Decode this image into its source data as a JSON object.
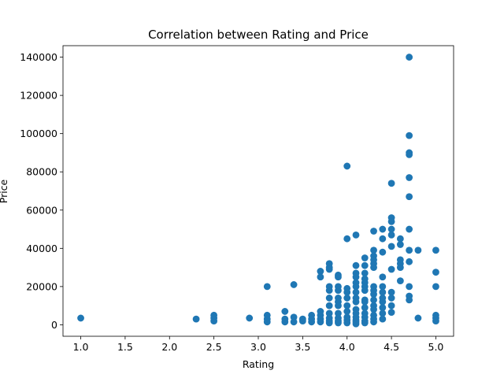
{
  "chart_data": {
    "type": "scatter",
    "title": "Correlation between Rating and Price",
    "xlabel": "Rating",
    "ylabel": "Price",
    "xlim": [
      0.8,
      5.2
    ],
    "ylim": [
      -6000,
      146000
    ],
    "xticks": [
      1.0,
      1.5,
      2.0,
      2.5,
      3.0,
      3.5,
      4.0,
      4.5,
      5.0
    ],
    "xtick_labels": [
      "1.0",
      "1.5",
      "2.0",
      "2.5",
      "3.0",
      "3.5",
      "4.0",
      "4.5",
      "5.0"
    ],
    "yticks": [
      0,
      20000,
      40000,
      60000,
      80000,
      100000,
      120000,
      140000
    ],
    "ytick_labels": [
      "0",
      "20000",
      "40000",
      "60000",
      "80000",
      "100000",
      "120000",
      "140000"
    ],
    "grid": false,
    "marker_color": "#1f77b4",
    "series": [
      {
        "points": [
          [
            1.0,
            3500
          ],
          [
            2.3,
            3000
          ],
          [
            2.5,
            2000
          ],
          [
            2.5,
            3500
          ],
          [
            2.5,
            5000
          ],
          [
            2.9,
            3500
          ],
          [
            3.1,
            20000
          ],
          [
            3.1,
            5000
          ],
          [
            3.1,
            3000
          ],
          [
            3.1,
            1500
          ],
          [
            3.3,
            7000
          ],
          [
            3.3,
            3000
          ],
          [
            3.3,
            1500
          ],
          [
            3.4,
            21000
          ],
          [
            3.4,
            4000
          ],
          [
            3.4,
            1500
          ],
          [
            3.5,
            3000
          ],
          [
            3.5,
            2000
          ],
          [
            3.6,
            5000
          ],
          [
            3.6,
            3000
          ],
          [
            3.6,
            1500
          ],
          [
            3.7,
            28000
          ],
          [
            3.7,
            25000
          ],
          [
            3.7,
            7000
          ],
          [
            3.7,
            5000
          ],
          [
            3.7,
            3000
          ],
          [
            3.7,
            1500
          ],
          [
            3.8,
            32000
          ],
          [
            3.8,
            30000
          ],
          [
            3.8,
            29000
          ],
          [
            3.8,
            20000
          ],
          [
            3.8,
            18000
          ],
          [
            3.8,
            14000
          ],
          [
            3.8,
            10000
          ],
          [
            3.8,
            6000
          ],
          [
            3.8,
            3500
          ],
          [
            3.8,
            2000
          ],
          [
            3.8,
            1000
          ],
          [
            3.9,
            26000
          ],
          [
            3.9,
            25000
          ],
          [
            3.9,
            20000
          ],
          [
            3.9,
            18000
          ],
          [
            3.9,
            14000
          ],
          [
            3.9,
            12000
          ],
          [
            3.9,
            10000
          ],
          [
            3.9,
            6000
          ],
          [
            3.9,
            3500
          ],
          [
            3.9,
            2000
          ],
          [
            3.9,
            1000
          ],
          [
            4.0,
            83000
          ],
          [
            4.0,
            45000
          ],
          [
            4.0,
            19000
          ],
          [
            4.0,
            17000
          ],
          [
            4.0,
            14000
          ],
          [
            4.0,
            10000
          ],
          [
            4.0,
            7000
          ],
          [
            4.0,
            4000
          ],
          [
            4.0,
            2500
          ],
          [
            4.0,
            1000
          ],
          [
            4.1,
            47000
          ],
          [
            4.1,
            31000
          ],
          [
            4.1,
            27000
          ],
          [
            4.1,
            25000
          ],
          [
            4.1,
            22000
          ],
          [
            4.1,
            20000
          ],
          [
            4.1,
            17000
          ],
          [
            4.1,
            14000
          ],
          [
            4.1,
            12000
          ],
          [
            4.1,
            8000
          ],
          [
            4.1,
            6000
          ],
          [
            4.1,
            4000
          ],
          [
            4.1,
            2500
          ],
          [
            4.1,
            1500
          ],
          [
            4.1,
            500
          ],
          [
            4.2,
            35000
          ],
          [
            4.2,
            31000
          ],
          [
            4.2,
            27000
          ],
          [
            4.2,
            24000
          ],
          [
            4.2,
            22000
          ],
          [
            4.2,
            20000
          ],
          [
            4.2,
            18000
          ],
          [
            4.2,
            13000
          ],
          [
            4.2,
            12000
          ],
          [
            4.2,
            9000
          ],
          [
            4.2,
            6000
          ],
          [
            4.2,
            4000
          ],
          [
            4.2,
            2000
          ],
          [
            4.2,
            1000
          ],
          [
            4.3,
            49000
          ],
          [
            4.3,
            39000
          ],
          [
            4.3,
            36000
          ],
          [
            4.3,
            34000
          ],
          [
            4.3,
            32000
          ],
          [
            4.3,
            30000
          ],
          [
            4.3,
            20000
          ],
          [
            4.3,
            18000
          ],
          [
            4.3,
            16000
          ],
          [
            4.3,
            13000
          ],
          [
            4.3,
            10000
          ],
          [
            4.3,
            8000
          ],
          [
            4.3,
            5000
          ],
          [
            4.3,
            3000
          ],
          [
            4.3,
            1500
          ],
          [
            4.4,
            50000
          ],
          [
            4.4,
            45000
          ],
          [
            4.4,
            38000
          ],
          [
            4.4,
            25000
          ],
          [
            4.4,
            20000
          ],
          [
            4.4,
            17000
          ],
          [
            4.4,
            14000
          ],
          [
            4.4,
            12000
          ],
          [
            4.4,
            9000
          ],
          [
            4.4,
            6000
          ],
          [
            4.4,
            3000
          ],
          [
            4.5,
            74000
          ],
          [
            4.5,
            56000
          ],
          [
            4.5,
            54000
          ],
          [
            4.5,
            50000
          ],
          [
            4.5,
            47000
          ],
          [
            4.5,
            41000
          ],
          [
            4.5,
            29000
          ],
          [
            4.5,
            17000
          ],
          [
            4.5,
            14000
          ],
          [
            4.5,
            10000
          ],
          [
            4.5,
            6500
          ],
          [
            4.6,
            45000
          ],
          [
            4.6,
            42000
          ],
          [
            4.6,
            34000
          ],
          [
            4.6,
            32000
          ],
          [
            4.6,
            30000
          ],
          [
            4.6,
            23000
          ],
          [
            4.7,
            140000
          ],
          [
            4.7,
            99000
          ],
          [
            4.7,
            90000
          ],
          [
            4.7,
            89000
          ],
          [
            4.7,
            77000
          ],
          [
            4.7,
            67000
          ],
          [
            4.7,
            50000
          ],
          [
            4.7,
            39000
          ],
          [
            4.7,
            33000
          ],
          [
            4.7,
            20000
          ],
          [
            4.7,
            15000
          ],
          [
            4.7,
            13000
          ],
          [
            4.8,
            39000
          ],
          [
            4.8,
            3500
          ],
          [
            5.0,
            39000
          ],
          [
            5.0,
            27500
          ],
          [
            5.0,
            20000
          ],
          [
            5.0,
            5000
          ],
          [
            5.0,
            3500
          ],
          [
            5.0,
            2000
          ]
        ]
      }
    ]
  }
}
